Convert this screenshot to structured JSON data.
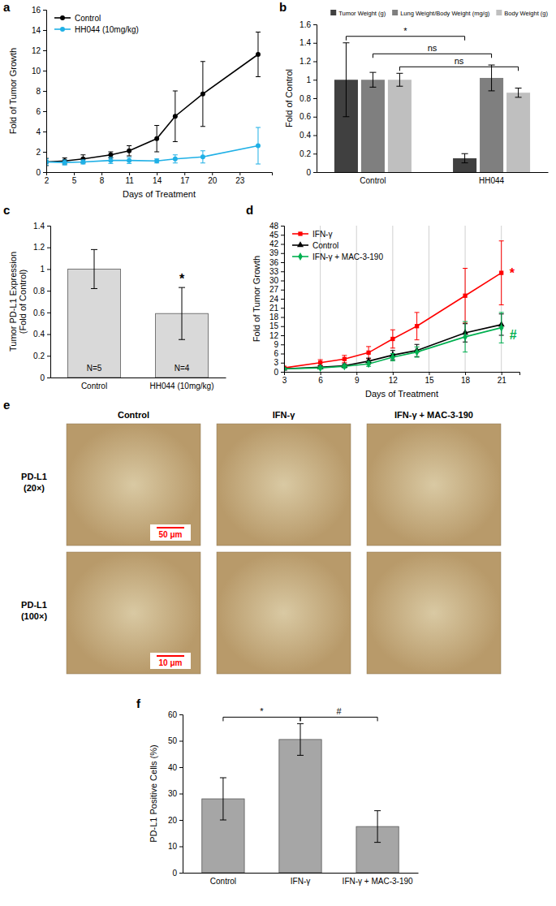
{
  "chart_data": [
    {
      "type": "line",
      "panel_label": "a",
      "x": [
        2,
        4,
        6,
        9,
        11,
        14,
        16,
        19,
        25
      ],
      "xlim": [
        2,
        26.5
      ],
      "xticks": [
        2,
        5,
        8,
        11,
        14,
        17,
        20,
        23
      ],
      "ylim": [
        0,
        16
      ],
      "yticks": [
        0,
        2,
        4,
        6,
        8,
        10,
        12,
        14,
        16
      ],
      "x_label": "Days of Treatment",
      "y_label": "Fold of Tumor Growth",
      "legend": "top-left",
      "series": [
        {
          "name": "Control",
          "color": "#000000",
          "marker": "circle",
          "values": [
            1,
            1.1,
            1.3,
            1.7,
            2.1,
            3.3,
            5.5,
            7.7,
            11.6
          ],
          "errors": [
            0.35,
            0.3,
            0.4,
            0.3,
            0.5,
            1.3,
            2.5,
            3.2,
            2.2
          ]
        },
        {
          "name": "HH044 (10mg/kg)",
          "color": "#1fb0e6",
          "marker": "circle",
          "values": [
            1,
            0.95,
            1,
            1.15,
            1.15,
            1.1,
            1.3,
            1.5,
            2.6
          ],
          "errors": [
            0.3,
            0.25,
            0.2,
            0.3,
            0.3,
            0.2,
            0.4,
            0.6,
            1.8
          ]
        }
      ]
    },
    {
      "type": "bar",
      "panel_label": "b",
      "categories": [
        "Control",
        "HH044"
      ],
      "ylim": [
        0,
        1.6
      ],
      "yticks": [
        0,
        0.2,
        0.4,
        0.6,
        0.8,
        1,
        1.2,
        1.4,
        1.6
      ],
      "y_label": "Fold of Control",
      "legend": "top",
      "series": [
        {
          "name": "Tumor Weight (g)",
          "color": "#404040",
          "values": [
            1,
            0.15
          ],
          "errors": [
            0.4,
            0.05
          ]
        },
        {
          "name": "Lung Weight/Body Weight (mg/g)",
          "color": "#7f7f7f",
          "values": [
            1,
            1.02
          ],
          "errors": [
            0.08,
            0.14
          ]
        },
        {
          "name": "Body Weight (g)",
          "color": "#bfbfbf",
          "values": [
            1,
            0.86
          ],
          "errors": [
            0.07,
            0.05
          ]
        }
      ],
      "annotations": [
        {
          "text": "*",
          "series": "Tumor Weight (g)"
        },
        {
          "text": "ns",
          "series": "Lung Weight/Body Weight (mg/g)"
        },
        {
          "text": "ns",
          "series": "Body Weight (g)"
        }
      ]
    },
    {
      "type": "bar",
      "panel_label": "c",
      "categories": [
        "Control",
        "HH044 (10mg/kg)"
      ],
      "values": [
        1,
        0.59
      ],
      "errors": [
        0.18,
        0.24
      ],
      "color": "#d9d9d9",
      "ylim": [
        0,
        1.4
      ],
      "yticks": [
        0,
        0.2,
        0.4,
        0.6,
        0.8,
        1,
        1.2,
        1.4
      ],
      "y_label": [
        "Tumor PD-L1 Expression",
        "(Fold of Control)"
      ],
      "bar_notes": [
        "N=5",
        "N=4"
      ],
      "annotations": [
        {
          "text": "*",
          "category": "HH044 (10mg/kg)"
        }
      ]
    },
    {
      "type": "line",
      "panel_label": "d",
      "x": [
        3,
        6,
        8,
        10,
        12,
        14,
        18,
        21
      ],
      "xlim": [
        3,
        22.5
      ],
      "xticks": [
        3,
        6,
        9,
        12,
        15,
        18,
        21
      ],
      "ylim": [
        0,
        48
      ],
      "yticks": [
        0,
        3,
        6,
        9,
        12,
        15,
        18,
        21,
        24,
        27,
        30,
        33,
        36,
        39,
        42,
        45,
        48
      ],
      "x_label": "Days of Treatment",
      "y_label": "Fold of Tumor Growth",
      "grid": "x",
      "legend": "top-left",
      "series": [
        {
          "name": "IFN-γ",
          "color": "#ff0000",
          "marker": "square",
          "values": [
            1.3,
            3,
            4.2,
            6.3,
            10.8,
            15,
            25,
            32.5
          ],
          "errors": [
            0.5,
            1,
            1.2,
            2,
            3,
            4.5,
            9,
            10.5
          ]
        },
        {
          "name": "Control",
          "color": "#000000",
          "marker": "triangle",
          "values": [
            1,
            1.5,
            2,
            3.5,
            5.5,
            7,
            12.8,
            15.5
          ],
          "errors": [
            0.3,
            0.5,
            0.6,
            1,
            1.5,
            2,
            3,
            3.5
          ]
        },
        {
          "name": "IFN-γ + MAC-3-190",
          "color": "#00b050",
          "marker": "diamond",
          "values": [
            1,
            1.3,
            1.8,
            2.6,
            4.8,
            6.5,
            11.5,
            14.5
          ],
          "errors": [
            0.3,
            0.4,
            0.5,
            0.8,
            1.2,
            1.7,
            5,
            5
          ]
        }
      ],
      "annotations": [
        {
          "text": "*",
          "series": "IFN-γ"
        },
        {
          "text": "#",
          "series": "IFN-γ + MAC-3-190"
        }
      ]
    },
    {
      "type": "bar",
      "panel_label": "f",
      "categories": [
        "Control",
        "IFN-γ",
        "IFN-γ + MAC-3-190"
      ],
      "values": [
        28,
        50.5,
        17.5
      ],
      "errors": [
        8,
        6,
        6
      ],
      "color": "#a6a6a6",
      "ylim": [
        0,
        60
      ],
      "yticks": [
        0,
        10,
        20,
        30,
        40,
        50,
        60
      ],
      "y_label": "PD-L1 Positive Cells (%)",
      "annotations": [
        {
          "text": "*",
          "from": "Control",
          "to": "IFN-γ"
        },
        {
          "text": "#",
          "from": "IFN-γ",
          "to": "IFN-γ + MAC-3-190"
        }
      ]
    }
  ],
  "image_panel": {
    "panel_label": "e",
    "columns": [
      "Control",
      "IFN-γ",
      "IFN-γ + MAC-3-190"
    ],
    "rows": [
      {
        "label": [
          "PD-L1",
          "(20×)"
        ],
        "scale_bar": "50 μm"
      },
      {
        "label": [
          "PD-L1",
          "(100×)"
        ],
        "scale_bar": "10 μm"
      }
    ]
  }
}
